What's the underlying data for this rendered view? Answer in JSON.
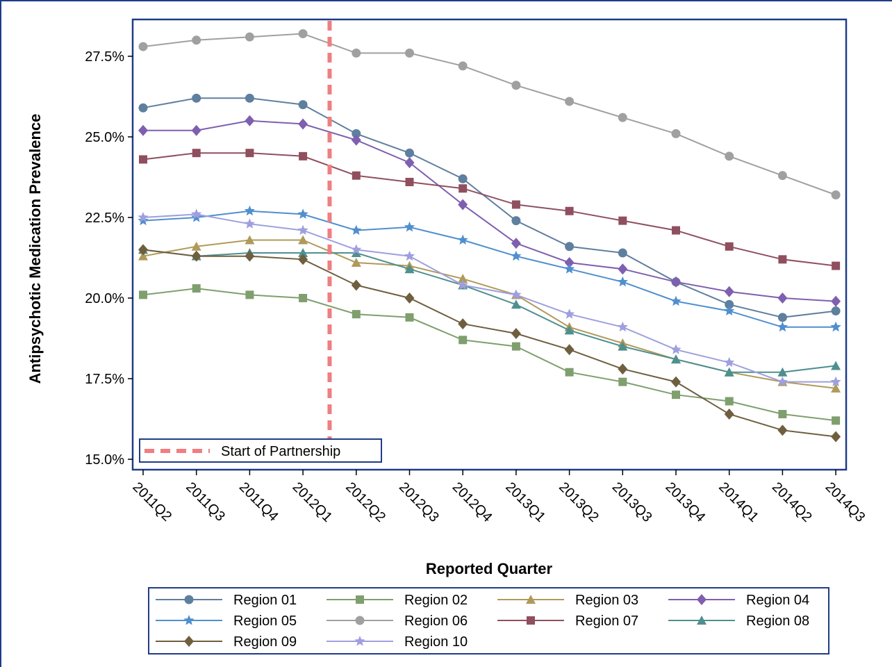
{
  "chart_data": {
    "type": "line",
    "xlabel": "Reported Quarter",
    "ylabel": "Antipsychotic Medication Prevalence",
    "categories": [
      "2011Q2",
      "2011Q3",
      "2011Q4",
      "2012Q1",
      "2012Q2",
      "2012Q3",
      "2012Q4",
      "2013Q1",
      "2013Q2",
      "2013Q3",
      "2013Q4",
      "2014Q1",
      "2014Q2",
      "2014Q3"
    ],
    "ylim": [
      15.0,
      28.5
    ],
    "yticks": [
      15.0,
      17.5,
      20.0,
      22.5,
      25.0,
      27.5
    ],
    "ytick_labels": [
      "15.0%",
      "17.5%",
      "20.0%",
      "22.5%",
      "25.0%",
      "27.5%"
    ],
    "reference_line": {
      "label": "Start of Partnership",
      "between": [
        "2012Q1",
        "2012Q2"
      ],
      "color": "#f07e80",
      "style": "dashed"
    },
    "legend_position": "bottom",
    "series": [
      {
        "name": "Region 01",
        "color": "#5f7f9f",
        "marker": "circle",
        "values": [
          25.9,
          26.2,
          26.2,
          26.0,
          25.1,
          24.5,
          23.7,
          22.4,
          21.6,
          21.4,
          20.5,
          19.8,
          19.4,
          19.6
        ]
      },
      {
        "name": "Region 02",
        "color": "#7f9f6e",
        "marker": "square",
        "values": [
          20.1,
          20.3,
          20.1,
          20.0,
          19.5,
          19.4,
          18.7,
          18.5,
          17.7,
          17.4,
          17.0,
          16.8,
          16.4,
          16.2
        ]
      },
      {
        "name": "Region 03",
        "color": "#b09a5a",
        "marker": "triangle",
        "values": [
          21.3,
          21.6,
          21.8,
          21.8,
          21.1,
          21.0,
          20.6,
          20.1,
          19.1,
          18.6,
          18.1,
          17.7,
          17.4,
          17.2
        ]
      },
      {
        "name": "Region 04",
        "color": "#7f5faf",
        "marker": "diamond",
        "values": [
          25.2,
          25.2,
          25.5,
          25.4,
          24.9,
          24.2,
          22.9,
          21.7,
          21.1,
          20.9,
          20.5,
          20.2,
          20.0,
          19.9
        ]
      },
      {
        "name": "Region 05",
        "color": "#4f8fcf",
        "marker": "star",
        "values": [
          22.4,
          22.5,
          22.7,
          22.6,
          22.1,
          22.2,
          21.8,
          21.3,
          20.9,
          20.5,
          19.9,
          19.6,
          19.1,
          19.1
        ]
      },
      {
        "name": "Region 06",
        "color": "#a0a0a0",
        "marker": "circle",
        "values": [
          27.8,
          28.0,
          28.1,
          28.2,
          27.6,
          27.6,
          27.2,
          26.6,
          26.1,
          25.6,
          25.1,
          24.4,
          23.8,
          23.2
        ]
      },
      {
        "name": "Region 07",
        "color": "#8f4f5f",
        "marker": "square",
        "values": [
          24.3,
          24.5,
          24.5,
          24.4,
          23.8,
          23.6,
          23.4,
          22.9,
          22.7,
          22.4,
          22.1,
          21.6,
          21.2,
          21.0
        ]
      },
      {
        "name": "Region 08",
        "color": "#4f8f8f",
        "marker": "triangle",
        "values": [
          21.5,
          21.3,
          21.4,
          21.4,
          21.4,
          20.9,
          20.4,
          19.8,
          19.0,
          18.5,
          18.1,
          17.7,
          17.7,
          17.9
        ]
      },
      {
        "name": "Region 09",
        "color": "#6f5f3f",
        "marker": "diamond",
        "values": [
          21.5,
          21.3,
          21.3,
          21.2,
          20.4,
          20.0,
          19.2,
          18.9,
          18.4,
          17.8,
          17.4,
          16.4,
          15.9,
          15.7
        ]
      },
      {
        "name": "Region 10",
        "color": "#9f9fdf",
        "marker": "star",
        "values": [
          22.5,
          22.6,
          22.3,
          22.1,
          21.5,
          21.3,
          20.4,
          20.1,
          19.5,
          19.1,
          18.4,
          18.0,
          17.4,
          17.4
        ]
      }
    ]
  }
}
